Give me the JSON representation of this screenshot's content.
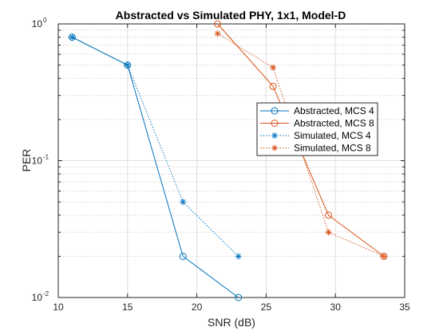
{
  "chart_data": {
    "type": "line",
    "title": "Abstracted vs Simulated PHY, 1x1, Model-D",
    "xlabel": "SNR (dB)",
    "ylabel": "PER",
    "xlim": [
      10,
      35
    ],
    "ylim": [
      0.01,
      1
    ],
    "yscale": "log",
    "grid": true,
    "legend_position": "right",
    "xticks": [
      10,
      15,
      20,
      25,
      30,
      35
    ],
    "yticks": [
      {
        "value": 0.01,
        "base": "10",
        "exp": "-2"
      },
      {
        "value": 0.1,
        "base": "10",
        "exp": "-1"
      },
      {
        "value": 1,
        "base": "10",
        "exp": "0"
      }
    ],
    "series": [
      {
        "name": "Abstracted, MCS 4",
        "color": "#0072BD",
        "marker": "circle",
        "dash": "solid",
        "x": [
          11,
          15,
          19,
          23
        ],
        "y": [
          0.8,
          0.5,
          0.02,
          0.01
        ]
      },
      {
        "name": "Abstracted, MCS 8",
        "color": "#D95319",
        "marker": "circle",
        "dash": "solid",
        "x": [
          21.5,
          25.5,
          29.5,
          33.5
        ],
        "y": [
          1.0,
          0.35,
          0.04,
          0.02
        ]
      },
      {
        "name": "Simulated, MCS 4",
        "color": "#0072BD",
        "marker": "star",
        "dash": "dotted",
        "x": [
          11,
          15,
          19,
          23
        ],
        "y": [
          0.8,
          0.5,
          0.05,
          0.02
        ]
      },
      {
        "name": "Simulated, MCS 8",
        "color": "#D95319",
        "marker": "star",
        "dash": "dotted",
        "x": [
          21.5,
          25.5,
          29.5,
          33.5
        ],
        "y": [
          0.85,
          0.48,
          0.03,
          0.02
        ]
      }
    ]
  }
}
